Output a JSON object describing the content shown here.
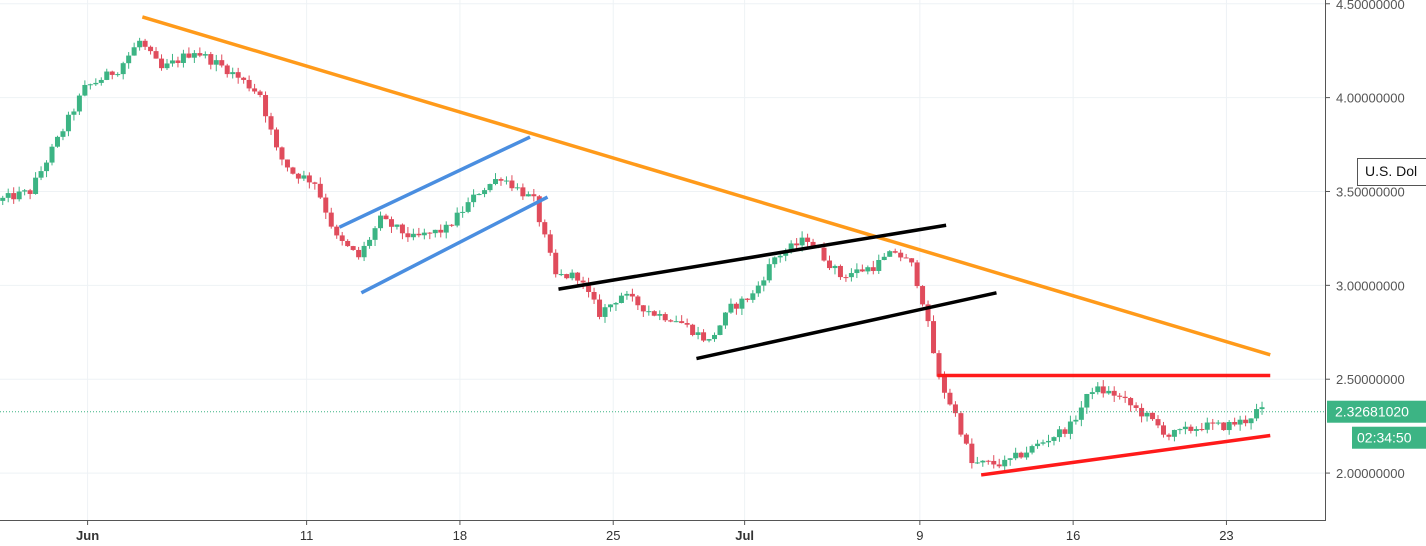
{
  "chart_data": {
    "type": "candlestick",
    "currency_label": "U.S. Dol",
    "price_axis": {
      "ticks": [
        "4.50000000",
        "4.00000000",
        "3.50000000",
        "3.00000000",
        "2.50000000",
        "2.00000000"
      ],
      "tick_values": [
        4.5,
        4.0,
        3.5,
        3.0,
        2.5,
        2.0
      ],
      "range": [
        1.75,
        4.52
      ]
    },
    "date_axis": {
      "labels": [
        {
          "text": "Jun",
          "day": 1
        },
        {
          "text": "11",
          "day": 11
        },
        {
          "text": "18",
          "day": 18
        },
        {
          "text": "25",
          "day": 25
        },
        {
          "text": "Jul",
          "day": 31
        },
        {
          "text": "9",
          "day": 39
        },
        {
          "text": "16",
          "day": 46
        },
        {
          "text": "23",
          "day": 53
        }
      ],
      "range": [
        -3,
        57.5
      ]
    },
    "last_price": {
      "value": 2.3268102,
      "label": "2.32681020",
      "countdown": "02:34:50"
    },
    "colors": {
      "up": "#3cb484",
      "down": "#e04c5c",
      "grid": "#eef2f5"
    },
    "anchors": [
      [
        -3.0,
        3.45
      ],
      [
        -1.5,
        3.5
      ],
      [
        1.0,
        4.05
      ],
      [
        2.5,
        4.15
      ],
      [
        3.5,
        4.3
      ],
      [
        4.5,
        4.15
      ],
      [
        6.0,
        4.25
      ],
      [
        7.5,
        4.15
      ],
      [
        9.0,
        4.02
      ],
      [
        9.8,
        3.7
      ],
      [
        10.5,
        3.6
      ],
      [
        11.5,
        3.55
      ],
      [
        12.5,
        3.25
      ],
      [
        13.5,
        3.15
      ],
      [
        14.5,
        3.35
      ],
      [
        16.0,
        3.25
      ],
      [
        17.5,
        3.3
      ],
      [
        19.0,
        3.5
      ],
      [
        20.0,
        3.58
      ],
      [
        21.5,
        3.45
      ],
      [
        22.5,
        3.05
      ],
      [
        23.5,
        3.05
      ],
      [
        24.5,
        2.85
      ],
      [
        25.5,
        2.95
      ],
      [
        27.0,
        2.85
      ],
      [
        28.0,
        2.82
      ],
      [
        29.5,
        2.7
      ],
      [
        30.5,
        2.88
      ],
      [
        31.5,
        2.95
      ],
      [
        32.5,
        3.15
      ],
      [
        34.0,
        3.25
      ],
      [
        35.5,
        3.05
      ],
      [
        37.0,
        3.1
      ],
      [
        38.0,
        3.18
      ],
      [
        38.8,
        3.1
      ],
      [
        39.3,
        2.9
      ],
      [
        40.0,
        2.5
      ],
      [
        40.8,
        2.3
      ],
      [
        41.5,
        2.05
      ],
      [
        43.0,
        2.05
      ],
      [
        44.5,
        2.15
      ],
      [
        46.0,
        2.25
      ],
      [
        47.0,
        2.45
      ],
      [
        48.0,
        2.42
      ],
      [
        49.5,
        2.3
      ],
      [
        50.5,
        2.2
      ],
      [
        52.0,
        2.25
      ],
      [
        53.0,
        2.25
      ],
      [
        54.0,
        2.28
      ],
      [
        54.5,
        2.33
      ]
    ],
    "trendlines": [
      {
        "name": "orange-descending-resistance",
        "color": "#ff9a1a",
        "points": [
          [
            3.5,
            4.43
          ],
          [
            55.0,
            2.63
          ]
        ]
      },
      {
        "name": "blue-channel-upper",
        "color": "#4a8ee0",
        "points": [
          [
            12.5,
            3.31
          ],
          [
            21.2,
            3.79
          ]
        ]
      },
      {
        "name": "blue-channel-lower",
        "color": "#4a8ee0",
        "points": [
          [
            13.5,
            2.96
          ],
          [
            22.0,
            3.47
          ]
        ]
      },
      {
        "name": "black-channel-upper",
        "color": "#000000",
        "points": [
          [
            22.5,
            2.98
          ],
          [
            40.2,
            3.32
          ]
        ]
      },
      {
        "name": "black-channel-lower",
        "color": "#000000",
        "points": [
          [
            28.8,
            2.61
          ],
          [
            42.5,
            2.96
          ]
        ]
      },
      {
        "name": "red-horizontal-resistance",
        "color": "#ff1a1a",
        "points": [
          [
            39.8,
            2.52
          ],
          [
            55.0,
            2.52
          ]
        ]
      },
      {
        "name": "red-rising-support",
        "color": "#ff1a1a",
        "points": [
          [
            41.8,
            1.99
          ],
          [
            55.0,
            2.2
          ]
        ]
      }
    ]
  }
}
